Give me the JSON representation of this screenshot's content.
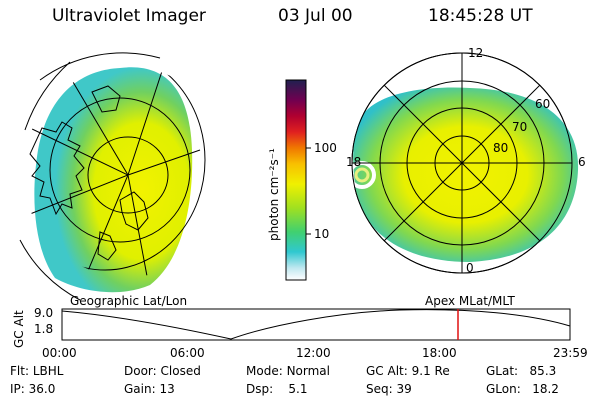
{
  "header": {
    "title": "Ultraviolet Imager",
    "date": "03 Jul 00",
    "time": "18:45:28 UT"
  },
  "colorbar": {
    "unit_label": "photon cm⁻²s⁻¹",
    "ticks": [
      "100",
      "10"
    ]
  },
  "right_map": {
    "lat_labels": [
      "60",
      "70",
      "80"
    ],
    "mlt_labels": [
      "12",
      "18",
      "6",
      "0"
    ]
  },
  "labels": {
    "left_frame": "Geographic Lat/Lon",
    "right_frame": "Apex MLat/MLT"
  },
  "altitude_plot": {
    "axis_label": "GC Alt",
    "ymax": "9.0",
    "ymin": "1.8",
    "x_ticks": [
      "00:00",
      "06:00",
      "12:00",
      "18:00",
      "23:59"
    ],
    "current_time_marker": "18:45"
  },
  "info": {
    "row1": [
      {
        "k": "Flt:",
        "v": "LBHL"
      },
      {
        "k": "Door:",
        "v": "Closed"
      },
      {
        "k": "Mode:",
        "v": "Normal"
      },
      {
        "k": "GC Alt:",
        "v": "9.1 Re"
      },
      {
        "k": "GLat:",
        "v": "85.3"
      }
    ],
    "row2": [
      {
        "k": "IP:",
        "v": "36.0"
      },
      {
        "k": "Gain:",
        "v": "13"
      },
      {
        "k": "Dsp:",
        "v": "5.1"
      },
      {
        "k": "Seq:",
        "v": "39"
      },
      {
        "k": "GLon:",
        "v": "18.2"
      }
    ]
  },
  "colors": {
    "auroral_yellow": "#f0f000",
    "auroral_green": "#50d050",
    "marker_red": "#e01010"
  }
}
